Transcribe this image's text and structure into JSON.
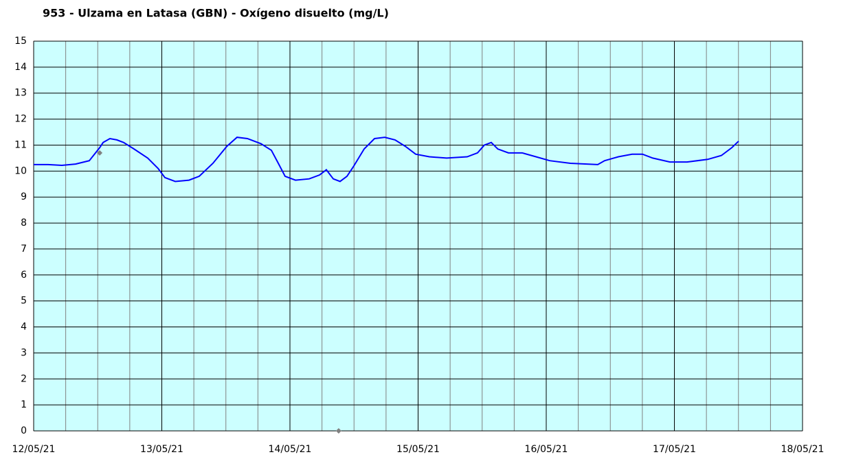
{
  "chart_data": {
    "type": "line",
    "title": "953 - Ulzama en Latasa (GBN) - Oxígeno disuelto (mg/L)",
    "x": [
      0,
      0.113,
      0.22,
      0.327,
      0.434,
      0.515,
      0.542,
      0.595,
      0.649,
      0.702,
      0.783,
      0.89,
      0.971,
      1.024,
      1.105,
      1.212,
      1.292,
      1.399,
      1.507,
      1.587,
      1.668,
      1.775,
      1.855,
      1.909,
      1.962,
      2.043,
      2.15,
      2.231,
      2.284,
      2.338,
      2.391,
      2.445,
      2.499,
      2.579,
      2.66,
      2.74,
      2.82,
      2.901,
      2.981,
      3.088,
      3.223,
      3.383,
      3.464,
      3.517,
      3.571,
      3.622,
      3.705,
      3.812,
      3.92,
      4.027,
      4.188,
      4.402,
      4.456,
      4.563,
      4.67,
      4.751,
      4.831,
      4.965,
      5.099,
      5.26,
      5.367,
      5.448,
      5.501
    ],
    "series": [
      {
        "color": "#0000ff",
        "values": [
          10.25,
          10.25,
          10.22,
          10.27,
          10.4,
          10.9,
          11.1,
          11.25,
          11.2,
          11.1,
          10.85,
          10.5,
          10.1,
          9.75,
          9.6,
          9.65,
          9.8,
          10.3,
          10.95,
          11.3,
          11.25,
          11.05,
          10.8,
          10.3,
          9.8,
          9.65,
          9.7,
          9.85,
          10.05,
          9.7,
          9.6,
          9.8,
          10.2,
          10.85,
          11.25,
          11.3,
          11.2,
          10.95,
          10.65,
          10.55,
          10.5,
          10.55,
          10.7,
          11.0,
          11.1,
          10.85,
          10.7,
          10.7,
          10.55,
          10.4,
          10.3,
          10.25,
          10.4,
          10.55,
          10.65,
          10.65,
          10.5,
          10.35,
          10.35,
          10.45,
          10.6,
          10.9,
          11.15
        ]
      }
    ],
    "points": {
      "color": "#808080",
      "x": [
        0.515,
        2.38
      ],
      "values": [
        10.7,
        0
      ]
    },
    "xlim": [
      0,
      6
    ],
    "xticks": [
      {
        "value": 0,
        "label": "12/05/21"
      },
      {
        "value": 1,
        "label": "13/05/21"
      },
      {
        "value": 2,
        "label": "14/05/21"
      },
      {
        "value": 3,
        "label": "15/05/21"
      },
      {
        "value": 4,
        "label": "16/05/21"
      },
      {
        "value": 5,
        "label": "17/05/21"
      },
      {
        "value": 6,
        "label": "18/05/21"
      }
    ],
    "xminorticks": [
      0.25,
      0.5,
      0.75,
      1.25,
      1.5,
      1.75,
      2.25,
      2.5,
      2.75,
      3.25,
      3.5,
      3.75,
      4.25,
      4.5,
      4.75,
      5.25,
      5.5,
      5.75
    ],
    "ylim": [
      0,
      15
    ],
    "yticks": [
      0,
      1,
      2,
      3,
      4,
      5,
      6,
      7,
      8,
      9,
      10,
      11,
      12,
      13,
      14,
      15
    ],
    "grid": true,
    "background": "#ccffff"
  }
}
